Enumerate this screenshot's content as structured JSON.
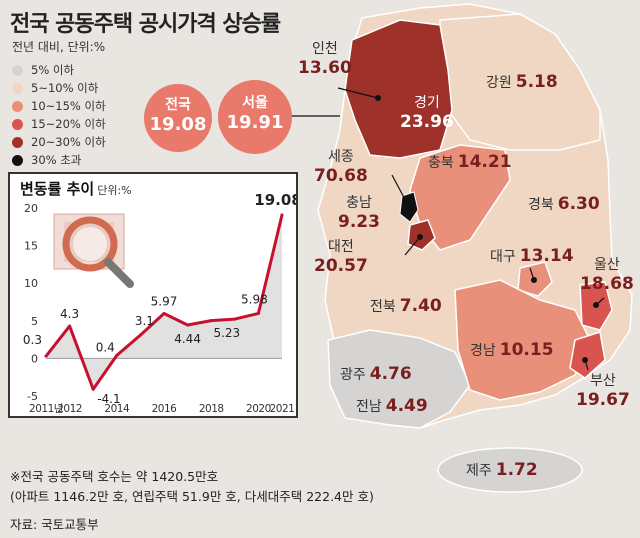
{
  "title": "전국 공동주택 공시가격 상승률",
  "unit": "전년 대비, 단위:%",
  "legend": [
    {
      "label": "5% 이하",
      "color": "#d6d4d2"
    },
    {
      "label": "5~10% 이하",
      "color": "#efd7c3"
    },
    {
      "label": "10~15% 이하",
      "color": "#e8907a"
    },
    {
      "label": "15~20% 이하",
      "color": "#d9534f"
    },
    {
      "label": "20~30% 이하",
      "color": "#9e3129"
    },
    {
      "label": "30% 초과",
      "color": "#111111"
    }
  ],
  "highlights": [
    {
      "name": "전국",
      "value": "19.08"
    },
    {
      "name": "서울",
      "value": "19.91"
    }
  ],
  "regions": [
    {
      "name": "인천",
      "value": "13.60"
    },
    {
      "name": "경기",
      "value": "23.96"
    },
    {
      "name": "강원",
      "value": "5.18"
    },
    {
      "name": "세종",
      "value": "70.68"
    },
    {
      "name": "충북",
      "value": "14.21"
    },
    {
      "name": "충남",
      "value": "9.23"
    },
    {
      "name": "경북",
      "value": "6.30"
    },
    {
      "name": "대전",
      "value": "20.57"
    },
    {
      "name": "대구",
      "value": "13.14"
    },
    {
      "name": "울산",
      "value": "18.68"
    },
    {
      "name": "전북",
      "value": "7.40"
    },
    {
      "name": "경남",
      "value": "10.15"
    },
    {
      "name": "광주",
      "value": "4.76"
    },
    {
      "name": "부산",
      "value": "19.67"
    },
    {
      "name": "전남",
      "value": "4.49"
    },
    {
      "name": "제주",
      "value": "1.72"
    }
  ],
  "colors": {
    "line": "#c8102e",
    "accent": "#e8796b"
  },
  "chart_data": {
    "type": "line",
    "title": "변동률 추이",
    "unit": "단위:%",
    "x": [
      2011,
      2012,
      2013,
      2014,
      2015,
      2016,
      2017,
      2018,
      2019,
      2020,
      2021
    ],
    "xticks": [
      "2011년",
      "2012",
      "2014",
      "2016",
      "2018",
      "2020",
      "2021"
    ],
    "xtick_values": [
      2011,
      2012,
      2014,
      2016,
      2018,
      2020,
      2021
    ],
    "values": [
      0.3,
      4.3,
      -4.1,
      0.4,
      3.1,
      5.97,
      4.44,
      5.02,
      5.23,
      5.98,
      19.08
    ],
    "labels": [
      "0.3",
      "4.3",
      "-4.1",
      "0.4",
      "3.1",
      "5.97",
      "4.44",
      "",
      "5.23",
      "5.98",
      "19.08"
    ],
    "yticks": [
      -5,
      0,
      5,
      10,
      15,
      20
    ],
    "ylim": [
      -5,
      20
    ],
    "grid": false
  },
  "notes": {
    "line1": "※전국 공동주택 호수는 약 1420.5만호",
    "line2": "(아파트 1146.2만 호, 연립주택 51.9만 호, 다세대주택 222.4만 호)"
  },
  "source": "자료: 국토교통부"
}
